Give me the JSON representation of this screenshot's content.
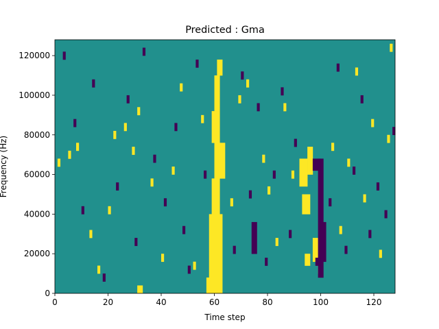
{
  "chart_data": {
    "type": "heatmap",
    "title": "Predicted : Gma",
    "xlabel": "Time step",
    "ylabel": "Frequency (Hz)",
    "xlim": [
      0,
      128
    ],
    "ylim": [
      0,
      128000
    ],
    "x_ticks": [
      "0",
      "20",
      "40",
      "60",
      "80",
      "100",
      "120"
    ],
    "y_ticks": [
      "0",
      "20000",
      "40000",
      "60000",
      "80000",
      "100000",
      "120000"
    ],
    "grid": false,
    "legend": "none",
    "colors": {
      "background_value": "#21908d",
      "low_value": "#440154",
      "high_value": "#fde725"
    },
    "grid_shape": {
      "time_steps": 128,
      "frequency_bins": 64,
      "bin_hz": 2000
    },
    "high_regions": [
      {
        "t": [
          57,
          63
        ],
        "f": [
          0,
          8000
        ]
      },
      {
        "t": [
          58,
          63
        ],
        "f": [
          8000,
          40000
        ]
      },
      {
        "t": [
          59,
          62
        ],
        "f": [
          40000,
          58000
        ]
      },
      {
        "t": [
          60,
          64
        ],
        "f": [
          58000,
          76000
        ]
      },
      {
        "t": [
          59,
          62
        ],
        "f": [
          76000,
          92000
        ]
      },
      {
        "t": [
          60,
          62
        ],
        "f": [
          92000,
          110000
        ]
      },
      {
        "t": [
          61,
          63
        ],
        "f": [
          110000,
          118000
        ]
      },
      {
        "t": [
          31,
          33
        ],
        "f": [
          0,
          4000
        ]
      },
      {
        "t": [
          92,
          95
        ],
        "f": [
          54000,
          68000
        ]
      },
      {
        "t": [
          93,
          96
        ],
        "f": [
          40000,
          50000
        ]
      },
      {
        "t": [
          95,
          97
        ],
        "f": [
          60000,
          74000
        ]
      },
      {
        "t": [
          94,
          96
        ],
        "f": [
          14000,
          20000
        ]
      },
      {
        "t": [
          97,
          99
        ],
        "f": [
          16000,
          28000
        ]
      },
      {
        "t": [
          99,
          100
        ],
        "f": [
          10000,
          14000
        ]
      }
    ],
    "low_regions": [
      {
        "t": [
          99,
          101
        ],
        "f": [
          8000,
          68000
        ]
      },
      {
        "t": [
          97,
          100
        ],
        "f": [
          62000,
          68000
        ]
      },
      {
        "t": [
          100,
          102
        ],
        "f": [
          16000,
          36000
        ]
      },
      {
        "t": [
          74,
          76
        ],
        "f": [
          20000,
          36000
        ]
      },
      {
        "t": [
          98,
          100
        ],
        "f": [
          14000,
          18000
        ]
      }
    ],
    "high_cells": [
      [
        1,
        64
      ],
      [
        5,
        68
      ],
      [
        8,
        72
      ],
      [
        13,
        28
      ],
      [
        16,
        10
      ],
      [
        20,
        40
      ],
      [
        22,
        78
      ],
      [
        26,
        82
      ],
      [
        29,
        70
      ],
      [
        31,
        90
      ],
      [
        36,
        54
      ],
      [
        40,
        16
      ],
      [
        44,
        60
      ],
      [
        47,
        102
      ],
      [
        52,
        12
      ],
      [
        55,
        86
      ],
      [
        66,
        44
      ],
      [
        69,
        96
      ],
      [
        72,
        104
      ],
      [
        78,
        66
      ],
      [
        80,
        50
      ],
      [
        83,
        24
      ],
      [
        86,
        92
      ],
      [
        89,
        58
      ],
      [
        104,
        72
      ],
      [
        107,
        30
      ],
      [
        110,
        64
      ],
      [
        113,
        110
      ],
      [
        116,
        46
      ],
      [
        119,
        84
      ],
      [
        122,
        18
      ],
      [
        125,
        76
      ],
      [
        126,
        122
      ]
    ],
    "low_cells": [
      [
        3,
        118
      ],
      [
        7,
        84
      ],
      [
        10,
        40
      ],
      [
        14,
        104
      ],
      [
        18,
        6
      ],
      [
        23,
        52
      ],
      [
        27,
        96
      ],
      [
        30,
        24
      ],
      [
        33,
        120
      ],
      [
        37,
        66
      ],
      [
        41,
        44
      ],
      [
        45,
        82
      ],
      [
        48,
        30
      ],
      [
        50,
        10
      ],
      [
        53,
        114
      ],
      [
        56,
        58
      ],
      [
        67,
        20
      ],
      [
        70,
        108
      ],
      [
        73,
        48
      ],
      [
        76,
        92
      ],
      [
        79,
        14
      ],
      [
        82,
        58
      ],
      [
        85,
        100
      ],
      [
        88,
        28
      ],
      [
        90,
        74
      ],
      [
        103,
        44
      ],
      [
        106,
        112
      ],
      [
        109,
        20
      ],
      [
        112,
        60
      ],
      [
        115,
        96
      ],
      [
        118,
        28
      ],
      [
        121,
        52
      ],
      [
        124,
        38
      ],
      [
        127,
        80
      ]
    ]
  }
}
